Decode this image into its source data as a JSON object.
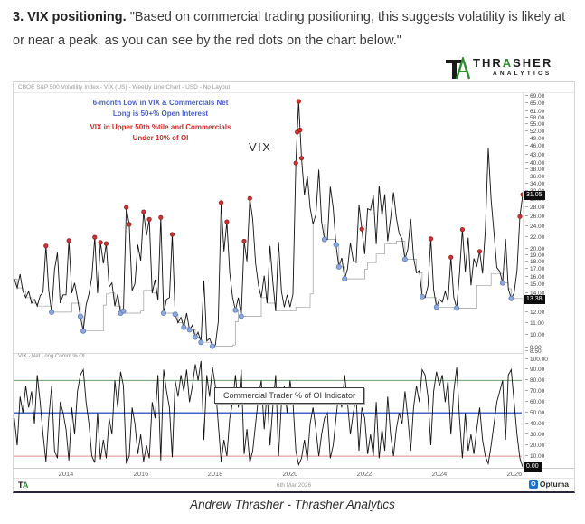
{
  "header": {
    "heading_bold": "3. VIX positioning.",
    "quote_text": " \"Based on commercial trading positioning, this suggests volatility is likely at or near a peak, as you can see by the red dots on the chart below.\""
  },
  "brand": {
    "wordmark_pre": "THR",
    "wordmark_a": "A",
    "wordmark_post": "SHER",
    "wordmark_sub": "ANALYTICS"
  },
  "chart": {
    "titlebar": "CBOE S&P 500 Volatility Index - VIX (US) - Weekly Line Chart - USD - No Layout",
    "annotation_blue_line1": "6-month Low in VIX & Commercials Net",
    "annotation_blue_line2": "Long is 50+% Open Interest",
    "annotation_red_line1": "VIX in Upper 50th %tile and Commercials",
    "annotation_red_line2": "Under 10% of OI",
    "series_label": "VIX",
    "pane2_label": "VIX - Net Long Comm % OI",
    "pane2_box_label": "Commercial Trader % of OI Indicator",
    "badge_vix_last": "31.05",
    "badge_low_last": "13.38",
    "badge_osc_last": "0.00",
    "footer_ta_t": "T",
    "footer_ta_a": "A",
    "footer_date": "6th Mar 2026",
    "footer_optuma": "Optuma",
    "footer_optuma_icon": "O"
  },
  "attribution": {
    "text": "Andrew Thrasher - Thrasher Analytics"
  },
  "chart_data": {
    "type": "line",
    "title": "CBOE S&P 500 Volatility Index - VIX (US) - Weekly Line Chart",
    "t_start": 2012.6154,
    "t_step": 0.076923,
    "x_ticks": [
      2014,
      2016,
      2018,
      2020,
      2022,
      2024,
      2026
    ],
    "panes": [
      {
        "name": "VIX weekly close",
        "scale": "log",
        "ylim": [
          8.5,
          69
        ],
        "y_ticks": [
          69,
          65,
          61,
          58,
          55,
          52,
          49,
          46,
          43,
          40,
          38,
          36,
          34,
          32,
          30,
          28,
          26,
          24,
          22,
          20,
          19,
          18,
          17,
          16,
          15,
          14,
          13,
          12,
          11,
          10,
          9,
          8.5
        ],
        "last_value": 31.05,
        "overlay_step_line": "6-month rolling low of VIX",
        "overlay_step_last": 13.38,
        "values": [
          15.7,
          14.6,
          16.3,
          14.2,
          13.5,
          14.2,
          12.9,
          13.3,
          12.6,
          13.7,
          14.1,
          20.5,
          14.3,
          12.0,
          16.9,
          19.4,
          12.9,
          13.8,
          13.8,
          21.4,
          14.0,
          15.2,
          13.4,
          11.6,
          10.3,
          12.7,
          13.9,
          16.0,
          22.0,
          14.0,
          21.1,
          17.8,
          20.9,
          14.7,
          15.2,
          12.6,
          13.9,
          11.9,
          12.1,
          28.0,
          24.4,
          14.3,
          15.1,
          20.7,
          18.2,
          27.0,
          22.3,
          25.4,
          14.0,
          15.6,
          13.2,
          25.8,
          11.9,
          13.3,
          13.5,
          22.5,
          11.8,
          11.0,
          11.5,
          10.6,
          11.9,
          10.4,
          10.8,
          9.8,
          10.2,
          9.4,
          15.5,
          9.5,
          9.7,
          9.1,
          9.2,
          11.1,
          29.1,
          19.6,
          24.9,
          16.5,
          13.5,
          12.2,
          13.5,
          11.6,
          21.3,
          18.1,
          30.1,
          25.4,
          17.8,
          14.9,
          13.5,
          16.1,
          12.9,
          20.5,
          15.4,
          12.1,
          21.2,
          14.2,
          12.5,
          13.8,
          12.5,
          13.9,
          40.1,
          66.0,
          41.7,
          31.0,
          36.1,
          27.9,
          24.5,
          26.4,
          38.0,
          24.9,
          21.6,
          21.6,
          33.1,
          27.9,
          20.7,
          17.3,
          18.6,
          15.7,
          17.0,
          21.0,
          18.2,
          17.9,
          28.6,
          23.5,
          19.2,
          27.7,
          27.4,
          30.8,
          20.8,
          33.4,
          26.1,
          31.1,
          21.3,
          25.6,
          31.6,
          25.8,
          22.6,
          21.7,
          18.4,
          20.0,
          25.5,
          18.7,
          16.5,
          16.8,
          13.6,
          13.5,
          14.8,
          21.7,
          14.4,
          12.5,
          13.3,
          13.0,
          14.2,
          13.1,
          18.7,
          13.5,
          12.4,
          16.4,
          23.4,
          16.6,
          21.9,
          14.9,
          18.5,
          17.4,
          19.6,
          16.4,
          23.4,
          45.3,
          29.7,
          22.7,
          17.2,
          16.7,
          15.2,
          21.7,
          14.5,
          13.4,
          14.0,
          16.8,
          26.0,
          31.05
        ],
        "red_dots_meaning": "VIX in upper 50th percentile and Commercials under 10% of OI",
        "red_dots": [
          [
            2013.4615,
            20.5
          ],
          [
            2014.0769,
            21.4
          ],
          [
            2014.7692,
            22.0
          ],
          [
            2014.9231,
            21.1
          ],
          [
            2015.0769,
            20.9
          ],
          [
            2015.6154,
            28.0
          ],
          [
            2015.6923,
            24.4
          ],
          [
            2016.0769,
            27.0
          ],
          [
            2016.2308,
            25.4
          ],
          [
            2016.5385,
            25.8
          ],
          [
            2016.8462,
            22.5
          ],
          [
            2018.1538,
            29.1
          ],
          [
            2018.3077,
            24.9
          ],
          [
            2018.7692,
            21.3
          ],
          [
            2018.9231,
            30.1
          ],
          [
            2020.1538,
            40.1
          ],
          [
            2020.1923,
            51.5
          ],
          [
            2020.2308,
            66.0
          ],
          [
            2020.2692,
            52.4
          ],
          [
            2020.3077,
            41.7
          ],
          [
            2021.9231,
            23.5
          ],
          [
            2023.7692,
            21.7
          ],
          [
            2024.3077,
            18.7
          ],
          [
            2024.6154,
            23.4
          ],
          [
            2025.0769,
            19.6
          ],
          [
            2026.1538,
            26.0
          ],
          [
            2026.2308,
            31.05
          ]
        ],
        "blue_dots_meaning": "6-month low in VIX and Commercials net long 50+% of open interest",
        "blue_dots": [
          [
            2013.6154,
            12.0
          ],
          [
            2014.3846,
            11.6
          ],
          [
            2014.4615,
            10.3
          ],
          [
            2015.4615,
            11.9
          ],
          [
            2015.5385,
            12.1
          ],
          [
            2016.6154,
            11.9
          ],
          [
            2016.9231,
            11.8
          ],
          [
            2017.1538,
            10.6
          ],
          [
            2017.3077,
            10.4
          ],
          [
            2017.4615,
            9.8
          ],
          [
            2017.6154,
            9.4
          ],
          [
            2017.9231,
            9.1
          ],
          [
            2018.5385,
            12.2
          ],
          [
            2018.6923,
            11.6
          ],
          [
            2020.9231,
            21.6
          ],
          [
            2021.2308,
            20.7
          ],
          [
            2021.3077,
            17.3
          ],
          [
            2021.4615,
            15.7
          ],
          [
            2023.0769,
            18.4
          ],
          [
            2023.5385,
            13.6
          ],
          [
            2023.9231,
            12.5
          ],
          [
            2024.4615,
            12.4
          ],
          [
            2025.6923,
            15.2
          ],
          [
            2025.9231,
            13.4
          ]
        ]
      },
      {
        "name": "Commercial Trader % of OI Indicator",
        "scale": "linear",
        "ylim": [
          0,
          100
        ],
        "y_ticks": [
          100,
          90,
          80,
          70,
          60,
          50,
          40,
          30,
          20,
          10
        ],
        "hlines": [
          {
            "value": 80,
            "color": "#6a9e6a"
          },
          {
            "value": 50,
            "color": "#4169cc"
          },
          {
            "value": 10,
            "color": "#e08a8a"
          }
        ],
        "last_value": 0.0,
        "values": [
          45,
          20,
          65,
          50,
          75,
          55,
          70,
          40,
          85,
          60,
          30,
          5,
          45,
          75,
          15,
          8,
          60,
          50,
          35,
          6,
          55,
          30,
          70,
          85,
          90,
          60,
          40,
          10,
          4,
          50,
          7,
          25,
          8,
          45,
          30,
          80,
          55,
          88,
          75,
          3,
          10,
          55,
          40,
          12,
          30,
          5,
          20,
          8,
          60,
          45,
          85,
          6,
          90,
          70,
          55,
          9,
          80,
          65,
          85,
          70,
          90,
          60,
          75,
          95,
          80,
          98,
          25,
          85,
          65,
          92,
          75,
          40,
          5,
          25,
          10,
          45,
          60,
          85,
          55,
          90,
          12,
          35,
          4,
          15,
          40,
          65,
          80,
          35,
          70,
          20,
          55,
          85,
          10,
          60,
          75,
          50,
          80,
          60,
          15,
          2,
          8,
          25,
          6,
          40,
          55,
          35,
          10,
          30,
          45,
          50,
          8,
          20,
          45,
          70,
          55,
          85,
          60,
          30,
          50,
          65,
          15,
          55,
          45,
          12,
          30,
          10,
          60,
          8,
          35,
          15,
          65,
          30,
          10,
          35,
          50,
          40,
          70,
          45,
          15,
          55,
          75,
          60,
          90,
          85,
          65,
          20,
          70,
          88,
          75,
          85,
          60,
          80,
          30,
          70,
          92,
          45,
          8,
          50,
          15,
          30,
          12,
          35,
          55,
          25,
          10,
          3,
          20,
          40,
          60,
          70,
          80,
          25,
          85,
          90,
          60,
          30,
          8,
          0
        ]
      }
    ]
  }
}
